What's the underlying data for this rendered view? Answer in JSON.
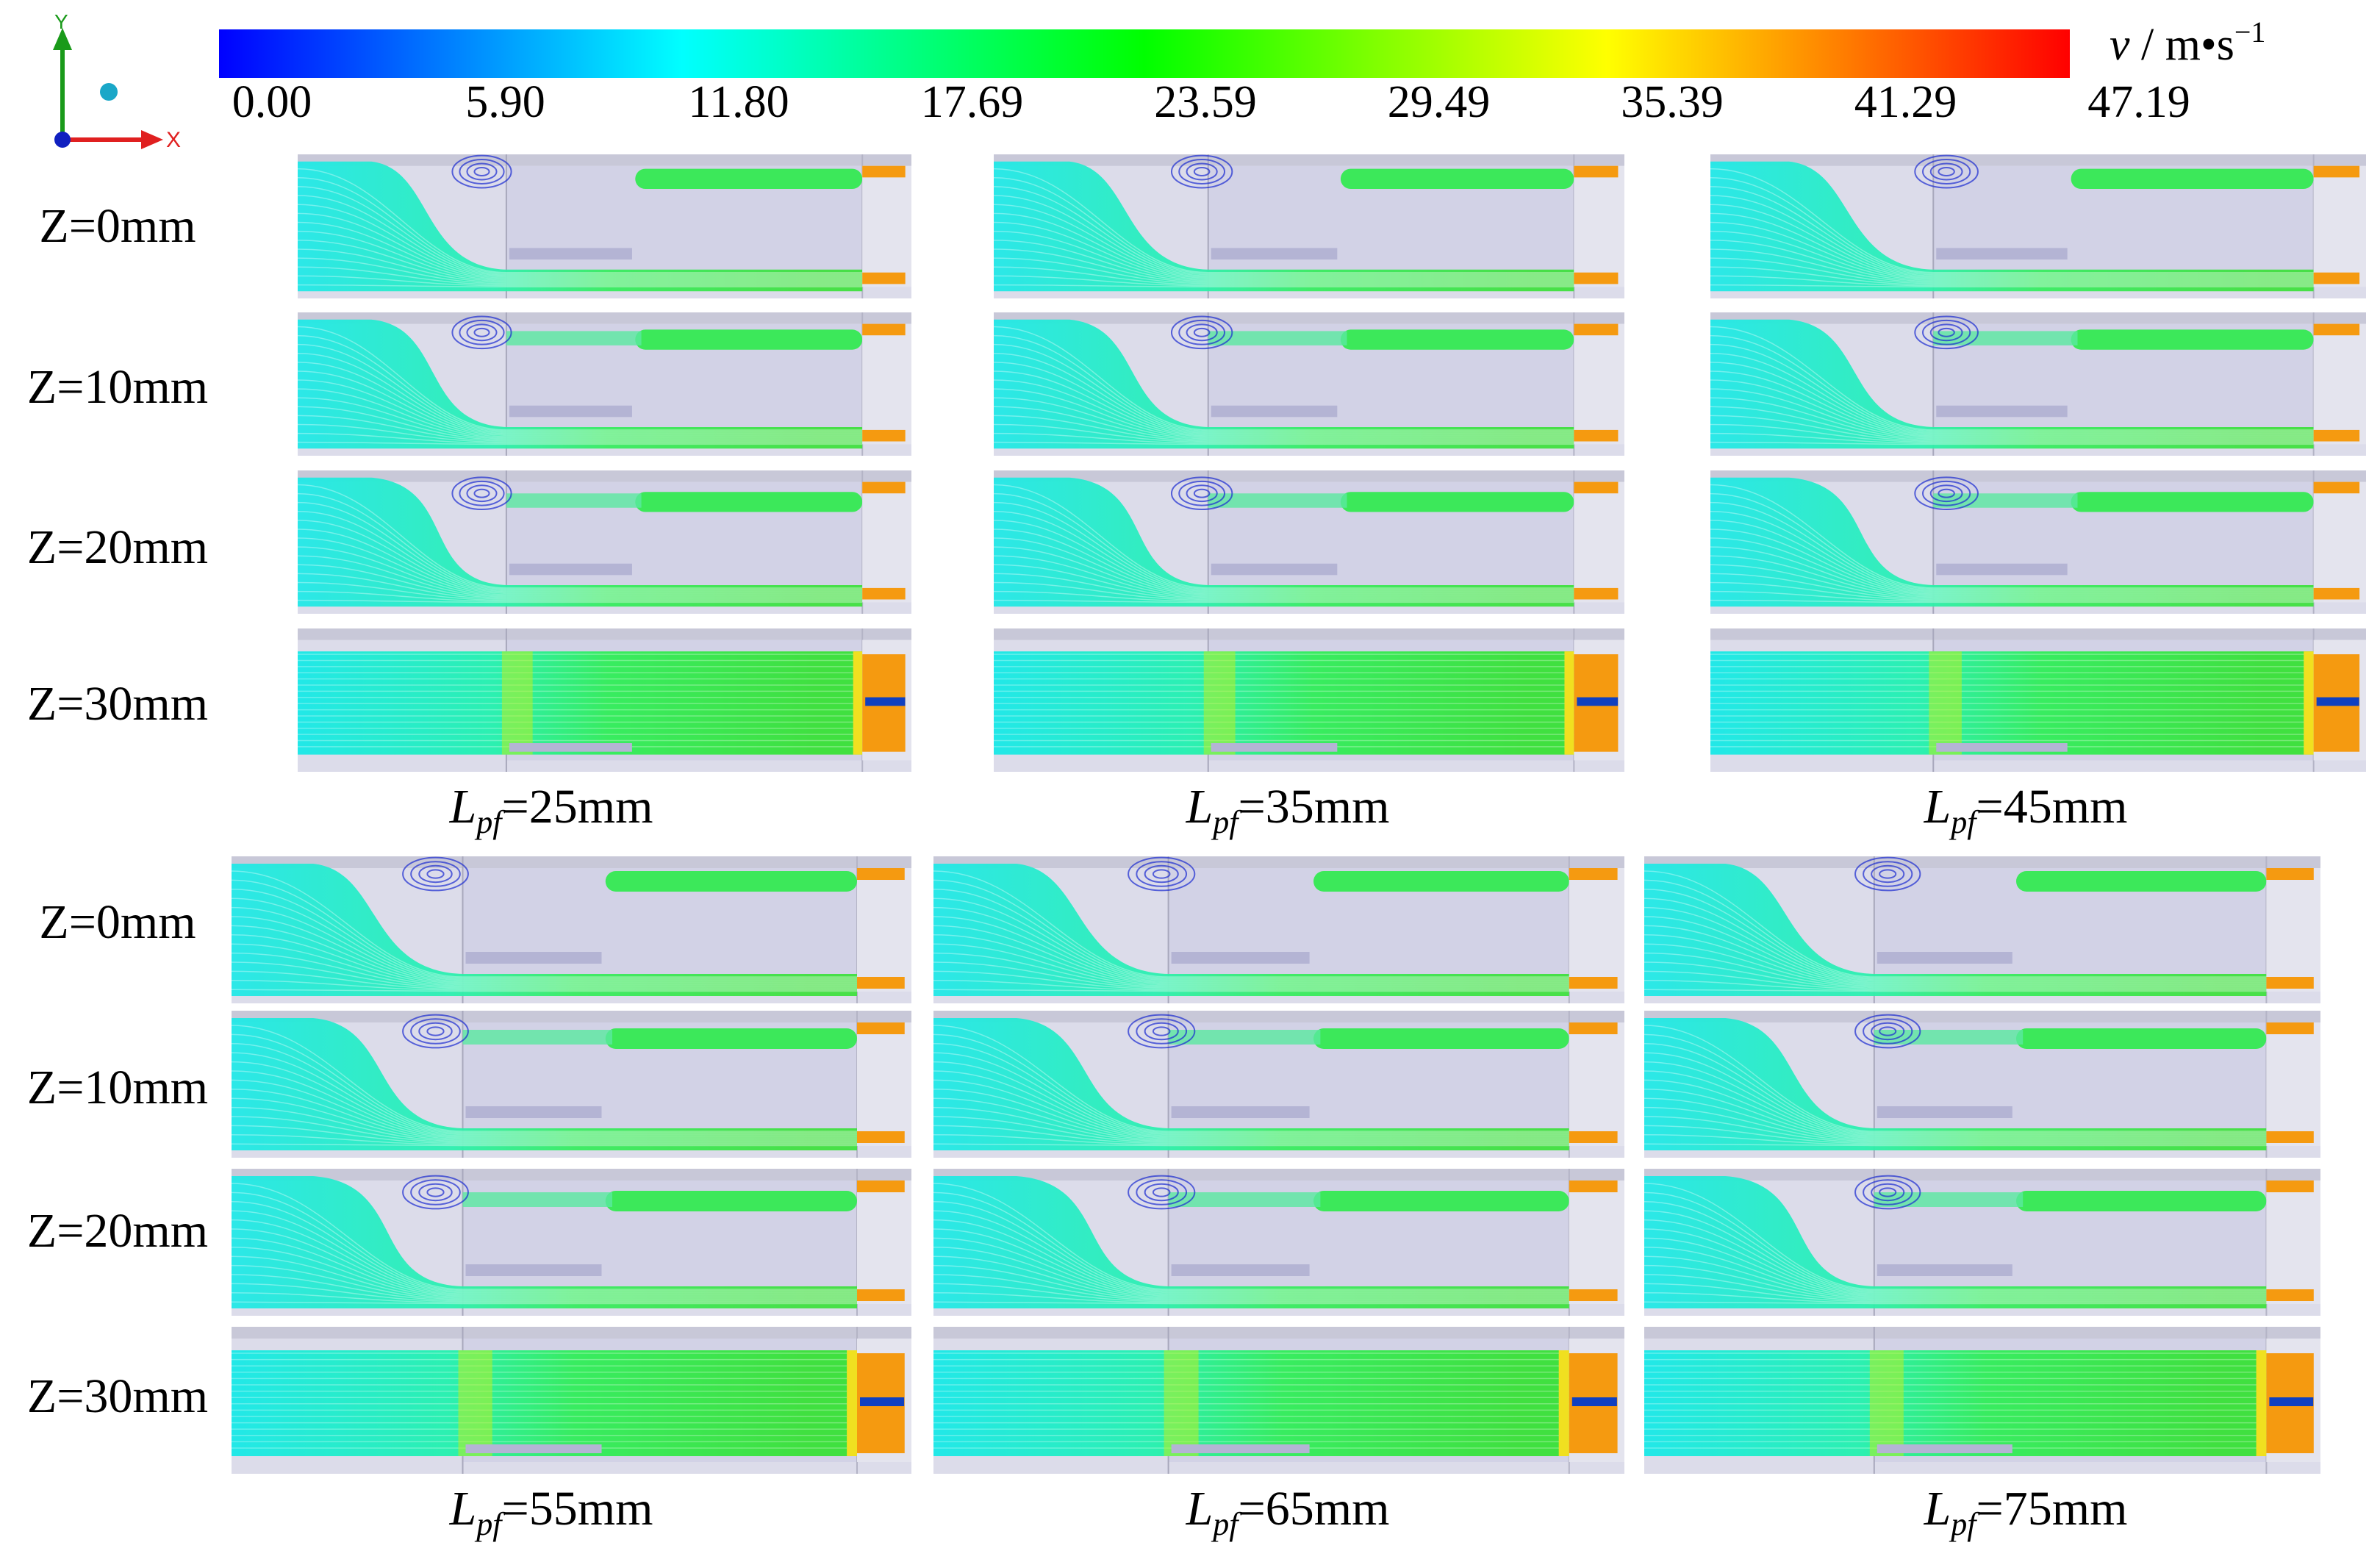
{
  "figure": {
    "axis_triad": {
      "y_label": "Y",
      "x_label": "X"
    },
    "colorbar": {
      "variable": "v",
      "unit_text": " / m•s",
      "unit_exp": "−1",
      "ticks": [
        "0.00",
        "5.90",
        "11.80",
        "17.69",
        "23.59",
        "29.49",
        "35.39",
        "41.29",
        "47.19"
      ],
      "min": 0.0,
      "max": 47.19,
      "colors": [
        "#0000ff",
        "#0080ff",
        "#00ffff",
        "#00ff80",
        "#00ff00",
        "#80ff00",
        "#ffff00",
        "#ff8000",
        "#ff0000"
      ]
    },
    "row_labels": [
      "Z=0mm",
      "Z=10mm",
      "Z=20mm",
      "Z=30mm"
    ],
    "top_group": {
      "row_labels": [
        "Z=0mm",
        "Z=10mm",
        "Z=20mm",
        "Z=30mm"
      ],
      "columns": [
        {
          "symbol": "L",
          "sub": "pf",
          "value": "=25mm"
        },
        {
          "symbol": "L",
          "sub": "pf",
          "value": "=35mm"
        },
        {
          "symbol": "L",
          "sub": "pf",
          "value": "=45mm"
        }
      ]
    },
    "bottom_group": {
      "row_labels": [
        "Z=0mm",
        "Z=10mm",
        "Z=20mm",
        "Z=30mm"
      ],
      "columns": [
        {
          "symbol": "L",
          "sub": "pf",
          "value": "=55mm"
        },
        {
          "symbol": "L",
          "sub": "pf",
          "value": "=65mm"
        },
        {
          "symbol": "L",
          "sub": "pf",
          "value": "=75mm"
        }
      ]
    }
  }
}
